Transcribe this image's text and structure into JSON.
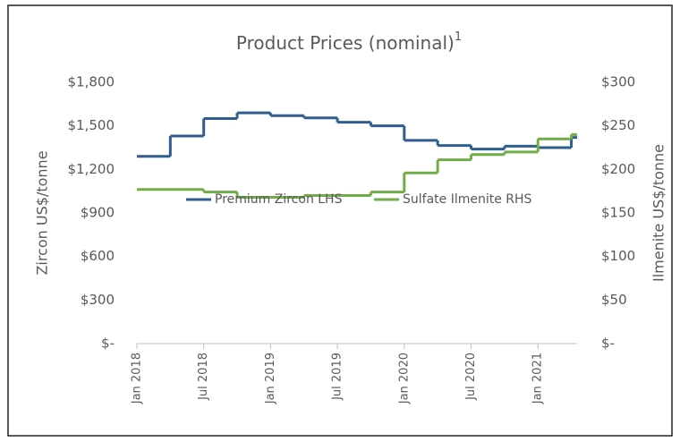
{
  "chart_data": {
    "type": "step-line",
    "title": "Product Prices (nominal)",
    "title_superscript": "1",
    "y_label": "Zircon US$/tonne",
    "y2_label": "Ilmenite US$/tonne",
    "legend": "center",
    "x": [
      "2018-01",
      "2018-04",
      "2018-07",
      "2018-10",
      "2019-01",
      "2019-04",
      "2019-07",
      "2019-10",
      "2020-01",
      "2020-04",
      "2020-07",
      "2020-10",
      "2021-01",
      "2021-04"
    ],
    "xlim": [
      "2018-01",
      "2021-05"
    ],
    "xticks": [
      {
        "value": "2018-01",
        "label": "Jan 2018"
      },
      {
        "value": "2018-07",
        "label": "Jul 2018"
      },
      {
        "value": "2019-01",
        "label": "Jan 2019"
      },
      {
        "value": "2019-07",
        "label": "Jul 2019"
      },
      {
        "value": "2020-01",
        "label": "Jan 2020"
      },
      {
        "value": "2020-07",
        "label": "Jul 2020"
      },
      {
        "value": "2021-01",
        "label": "Jan 2021"
      }
    ],
    "ylim": [
      0,
      1800
    ],
    "yticks": [
      {
        "value": 0,
        "label": "$-"
      },
      {
        "value": 300,
        "label": "$300"
      },
      {
        "value": 600,
        "label": "$600"
      },
      {
        "value": 900,
        "label": "$900"
      },
      {
        "value": 1200,
        "label": "$1,200"
      },
      {
        "value": 1500,
        "label": "$1,500"
      },
      {
        "value": 1800,
        "label": "$1,800"
      }
    ],
    "y2lim": [
      0,
      300
    ],
    "y2ticks": [
      {
        "value": 0,
        "label": "$-"
      },
      {
        "value": 50,
        "label": "$50"
      },
      {
        "value": 100,
        "label": "$100"
      },
      {
        "value": 150,
        "label": "$150"
      },
      {
        "value": 200,
        "label": "$200"
      },
      {
        "value": 250,
        "label": "$250"
      },
      {
        "value": 300,
        "label": "$300"
      }
    ],
    "series": [
      {
        "name": "Premium Zircon LHS",
        "color": "#2e5d8e",
        "axis": "y",
        "values": [
          1290,
          1430,
          1550,
          1590,
          1570,
          1555,
          1525,
          1500,
          1400,
          1365,
          1340,
          1360,
          1350,
          1420
        ]
      },
      {
        "name": "Sulfate Ilmenite RHS",
        "color": "#70ad47",
        "axis": "y2",
        "values": [
          177,
          177,
          174,
          168,
          168,
          170,
          170,
          174,
          196,
          211,
          217,
          220,
          235,
          240
        ]
      }
    ]
  }
}
